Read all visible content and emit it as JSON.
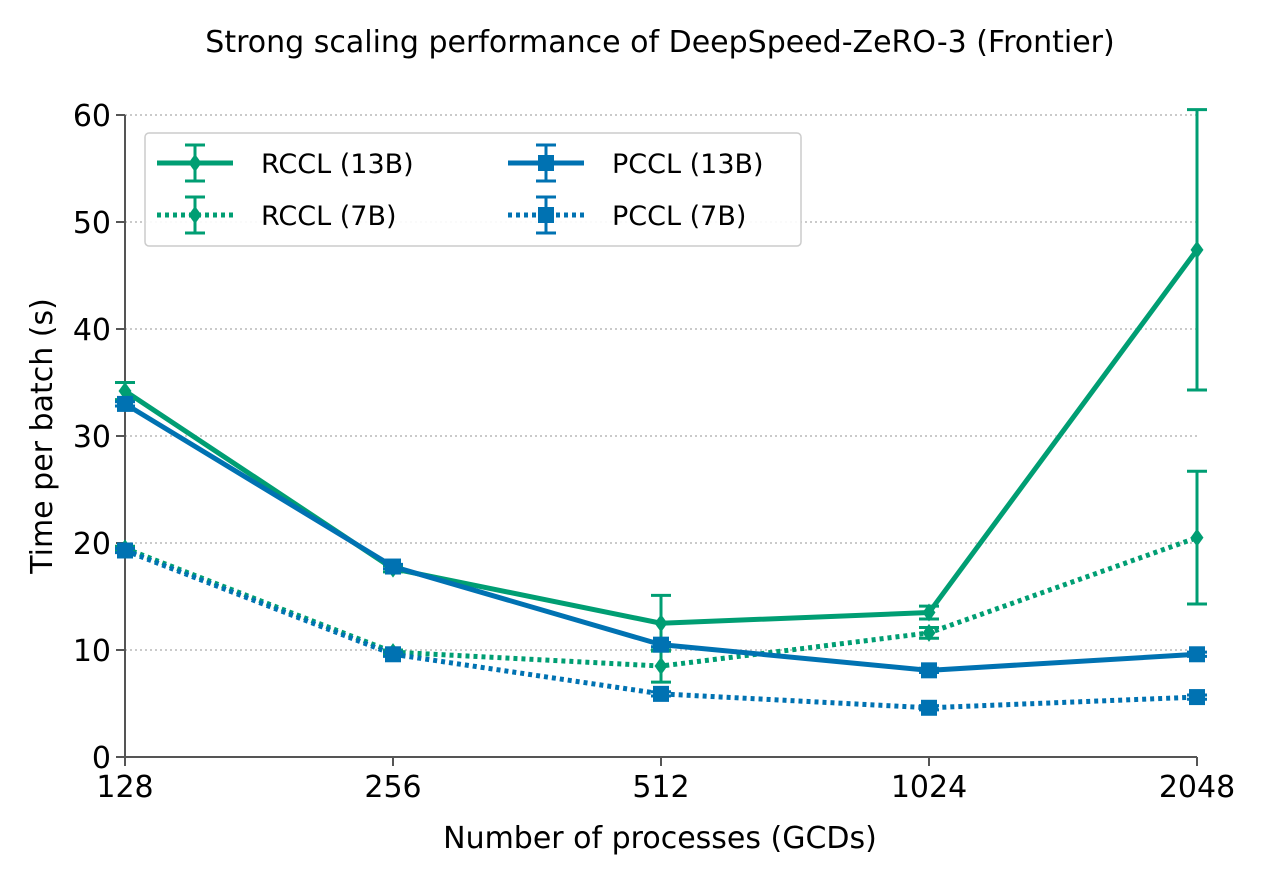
{
  "chart_data": {
    "type": "line",
    "title": "Strong scaling performance of DeepSpeed-ZeRO-3 (Frontier)",
    "xlabel": "Number of processes (GCDs)",
    "ylabel": "Time per batch (s)",
    "x": [
      "128",
      "256",
      "512",
      "1024",
      "2048"
    ],
    "ylim": [
      0,
      60
    ],
    "yticks": [
      "0",
      "10",
      "20",
      "30",
      "40",
      "50",
      "60"
    ],
    "grid": "horizontal",
    "legend": "top-left",
    "series": [
      {
        "name": "RCCL (13B)",
        "color": "#009E73",
        "line": "solid",
        "marker": "diamond",
        "values": [
          34.2,
          17.6,
          12.5,
          13.5,
          47.4
        ],
        "err": [
          0.8,
          0.3,
          2.6,
          0.6,
          13.1
        ]
      },
      {
        "name": "RCCL (7B)",
        "color": "#009E73",
        "line": "dotted",
        "marker": "diamond",
        "values": [
          19.5,
          9.8,
          8.5,
          11.6,
          20.5
        ],
        "err": [
          0.2,
          0.2,
          1.5,
          0.5,
          6.2
        ]
      },
      {
        "name": "PCCL (13B)",
        "color": "#0072B2",
        "line": "solid",
        "marker": "square",
        "values": [
          33.0,
          17.8,
          10.5,
          8.1,
          9.6
        ],
        "err": [
          0.2,
          0.2,
          0.2,
          0.2,
          0.2
        ]
      },
      {
        "name": "PCCL (7B)",
        "color": "#0072B2",
        "line": "dotted",
        "marker": "square",
        "values": [
          19.3,
          9.6,
          5.9,
          4.6,
          5.6
        ],
        "err": [
          0.2,
          0.2,
          0.2,
          0.2,
          0.2
        ]
      }
    ]
  }
}
